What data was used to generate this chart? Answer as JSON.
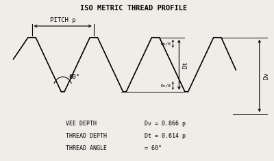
{
  "title": "ISO METRIC THREAD PROFILE",
  "bg_color": "#f0ede8",
  "line_color": "#000000",
  "pitch_label": "PITCH p",
  "angle_label": "60°",
  "legend_col1": [
    "VEE DEPTH",
    "THREAD DEPTH",
    "THREAD ANGLE"
  ],
  "legend_col2": [
    "Dv = 0.866 p",
    "Dt = 0.614 p",
    "= 60°"
  ],
  "dv_label": "Dv",
  "dt_label": "Dt",
  "dv_val": 0.866,
  "dt_val": 0.614,
  "pitch": 1.0
}
